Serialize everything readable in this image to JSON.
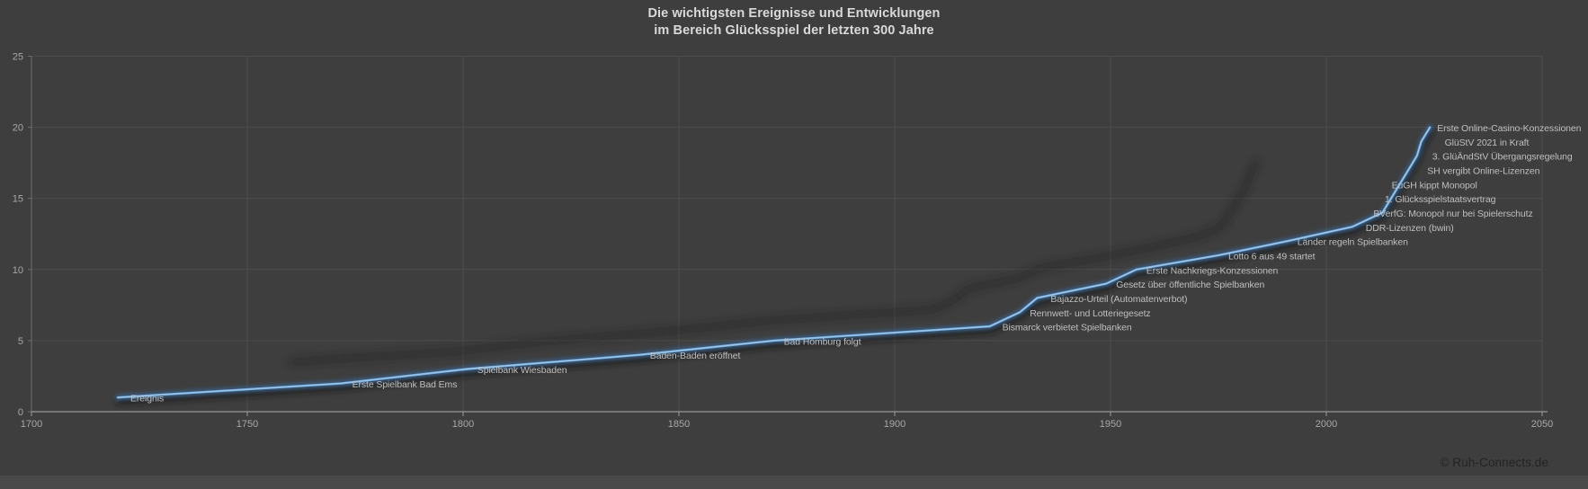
{
  "title": {
    "line1": "Die wichtigsten Ereignisse und Entwicklungen",
    "line2": "im Bereich Glücksspiel der letzten 300 Jahre"
  },
  "copyright": "© Ruh-Connects.de",
  "chart_data": {
    "type": "line",
    "series_name": "Ereignis",
    "title": "Die wichtigsten Ereignisse und Entwicklungen im Bereich Glücksspiel der letzten 300 Jahre",
    "xlabel": "",
    "ylabel": "",
    "xlim": [
      1700,
      2050
    ],
    "ylim": [
      0,
      25
    ],
    "x_ticks": [
      1700,
      1750,
      1800,
      1850,
      1900,
      1950,
      2000,
      2050
    ],
    "y_ticks": [
      0,
      5,
      10,
      15,
      20,
      25
    ],
    "grid": true,
    "legend_position": "none",
    "points": [
      {
        "year": 1720,
        "value": 1,
        "label": "Ereignis"
      },
      {
        "year": 1772,
        "value": 2,
        "label": "Erste Spielbank Bad Ems"
      },
      {
        "year": 1801,
        "value": 3,
        "label": "Spielbank Wiesbaden"
      },
      {
        "year": 1841,
        "value": 4,
        "label": "Baden-Baden eröffnet"
      },
      {
        "year": 1872,
        "value": 5,
        "label": "Bad Homburg folgt"
      },
      {
        "year": 1922,
        "value": 6,
        "label": "Bismarck verbietet Spielbanken"
      },
      {
        "year": 1929,
        "value": 7,
        "label": "Rennwett- und Lotteriegesetz"
      },
      {
        "year": 1933,
        "value": 8,
        "label": "Bajazzo-Urteil (Automatenverbot)"
      },
      {
        "year": 1949,
        "value": 9,
        "label": "Gesetz über öffentliche Spielbanken"
      },
      {
        "year": 1956,
        "value": 10,
        "label": "Erste Nachkriegs-Konzessionen"
      },
      {
        "year": 1975,
        "value": 11,
        "label": "Lotto 6 aus 49 startet"
      },
      {
        "year": 1991,
        "value": 12,
        "label": "Länder regeln Spielbanken"
      },
      {
        "year": 2006,
        "value": 13,
        "label": "DDR-Lizenzen (bwin)"
      },
      {
        "year": 2013,
        "value": 14,
        "label": "BVerfG: Monopol nur bei Spielerschutz"
      },
      {
        "year": 2015,
        "value": 15,
        "label": "1. Glücksspielstaatsvertrag"
      },
      {
        "year": 2017,
        "value": 16,
        "label": "EuGH kippt Monopol"
      },
      {
        "year": 2019,
        "value": 17,
        "label": "SH vergibt Online-Lizenzen"
      },
      {
        "year": 2021,
        "value": 18,
        "label": "3. GlüÄndStV Übergangsregelung"
      },
      {
        "year": 2022,
        "value": 19,
        "label": "GlüStV 2021 in Kraft"
      },
      {
        "year": 2024,
        "value": 20,
        "label": "Erste Online-Casino-Konzessionen"
      }
    ],
    "colors": {
      "background": "#3e3e3e",
      "bottom_strip": "#4a4a4a",
      "gridline": "#4d4d4d",
      "x_axis": "#999999",
      "y_axis": "#6e6e6e",
      "tick_text": "#a8a8a8",
      "title_text": "#d9d9d9",
      "label_text": "#bfbfbf",
      "line_core": "#79aedd",
      "line_inner": "#a9cfee",
      "line_glow": "#3c70a4",
      "near_shadow": "#141414",
      "perspective_shadow": "#1f1f1f",
      "copyright_text": "#242424"
    }
  }
}
